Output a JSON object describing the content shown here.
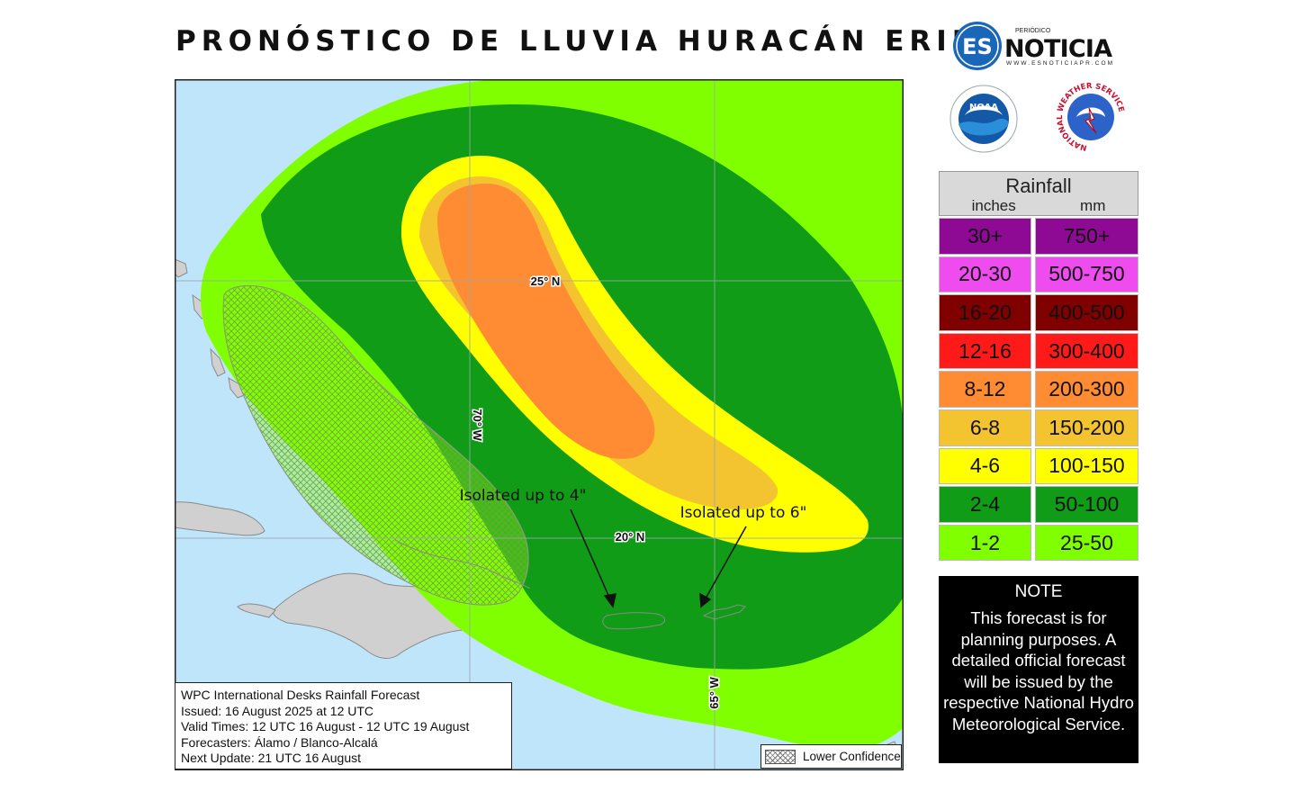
{
  "title": "PRONÓSTICO DE LLUVIA HURACÁN ERIN",
  "logos": {
    "es_mark": "ES",
    "es_top": "PERIÓDICO",
    "es_name": "NOTICIA",
    "es_url": "WWW.ESNOTICIAPR.COM",
    "noaa": "NOAA",
    "nws_ring": "NATIONAL WEATHER SERVICE"
  },
  "map": {
    "lat_labels": [
      "25° N",
      "20° N"
    ],
    "lon_labels": [
      "70° W",
      "65° W"
    ],
    "annotations": [
      "Isolated up to 4\"",
      "Isolated up to 6\""
    ],
    "info": {
      "line1": "WPC International Desks Rainfall Forecast",
      "line2": "Issued: 16 August 2025 at 12 UTC",
      "line3": "Valid Times: 12 UTC 16 August - 12 UTC 19 August",
      "line4": "Forecasters: Álamo / Blanco-Alcalá",
      "line5": "Next Update: 21 UTC 16 August"
    },
    "lower_confidence": "Lower Confidence",
    "colors": {
      "ocean": "#bfe5fb",
      "land": "#d0d0d0",
      "hatch": "#777777"
    }
  },
  "legend": {
    "title": "Rainfall",
    "unit_inches": "inches",
    "unit_mm": "mm",
    "rows": [
      {
        "inches": "30+",
        "mm": "750+",
        "color": "#8e0a94"
      },
      {
        "inches": "20-30",
        "mm": "500-750",
        "color": "#ef4cf0"
      },
      {
        "inches": "16-20",
        "mm": "400-500",
        "color": "#800000"
      },
      {
        "inches": "12-16",
        "mm": "300-400",
        "color": "#ff1a1a"
      },
      {
        "inches": "8-12",
        "mm": "200-300",
        "color": "#ff8c33"
      },
      {
        "inches": "6-8",
        "mm": "150-200",
        "color": "#f4c430"
      },
      {
        "inches": "4-6",
        "mm": "100-150",
        "color": "#ffff00"
      },
      {
        "inches": "2-4",
        "mm": "50-100",
        "color": "#119c17"
      },
      {
        "inches": "1-2",
        "mm": "25-50",
        "color": "#80ff00"
      }
    ]
  },
  "note": {
    "title": "NOTE",
    "body": "This forecast is for planning purposes. A detailed official forecast will be issued by the respective National Hydro Meteorological Service."
  }
}
